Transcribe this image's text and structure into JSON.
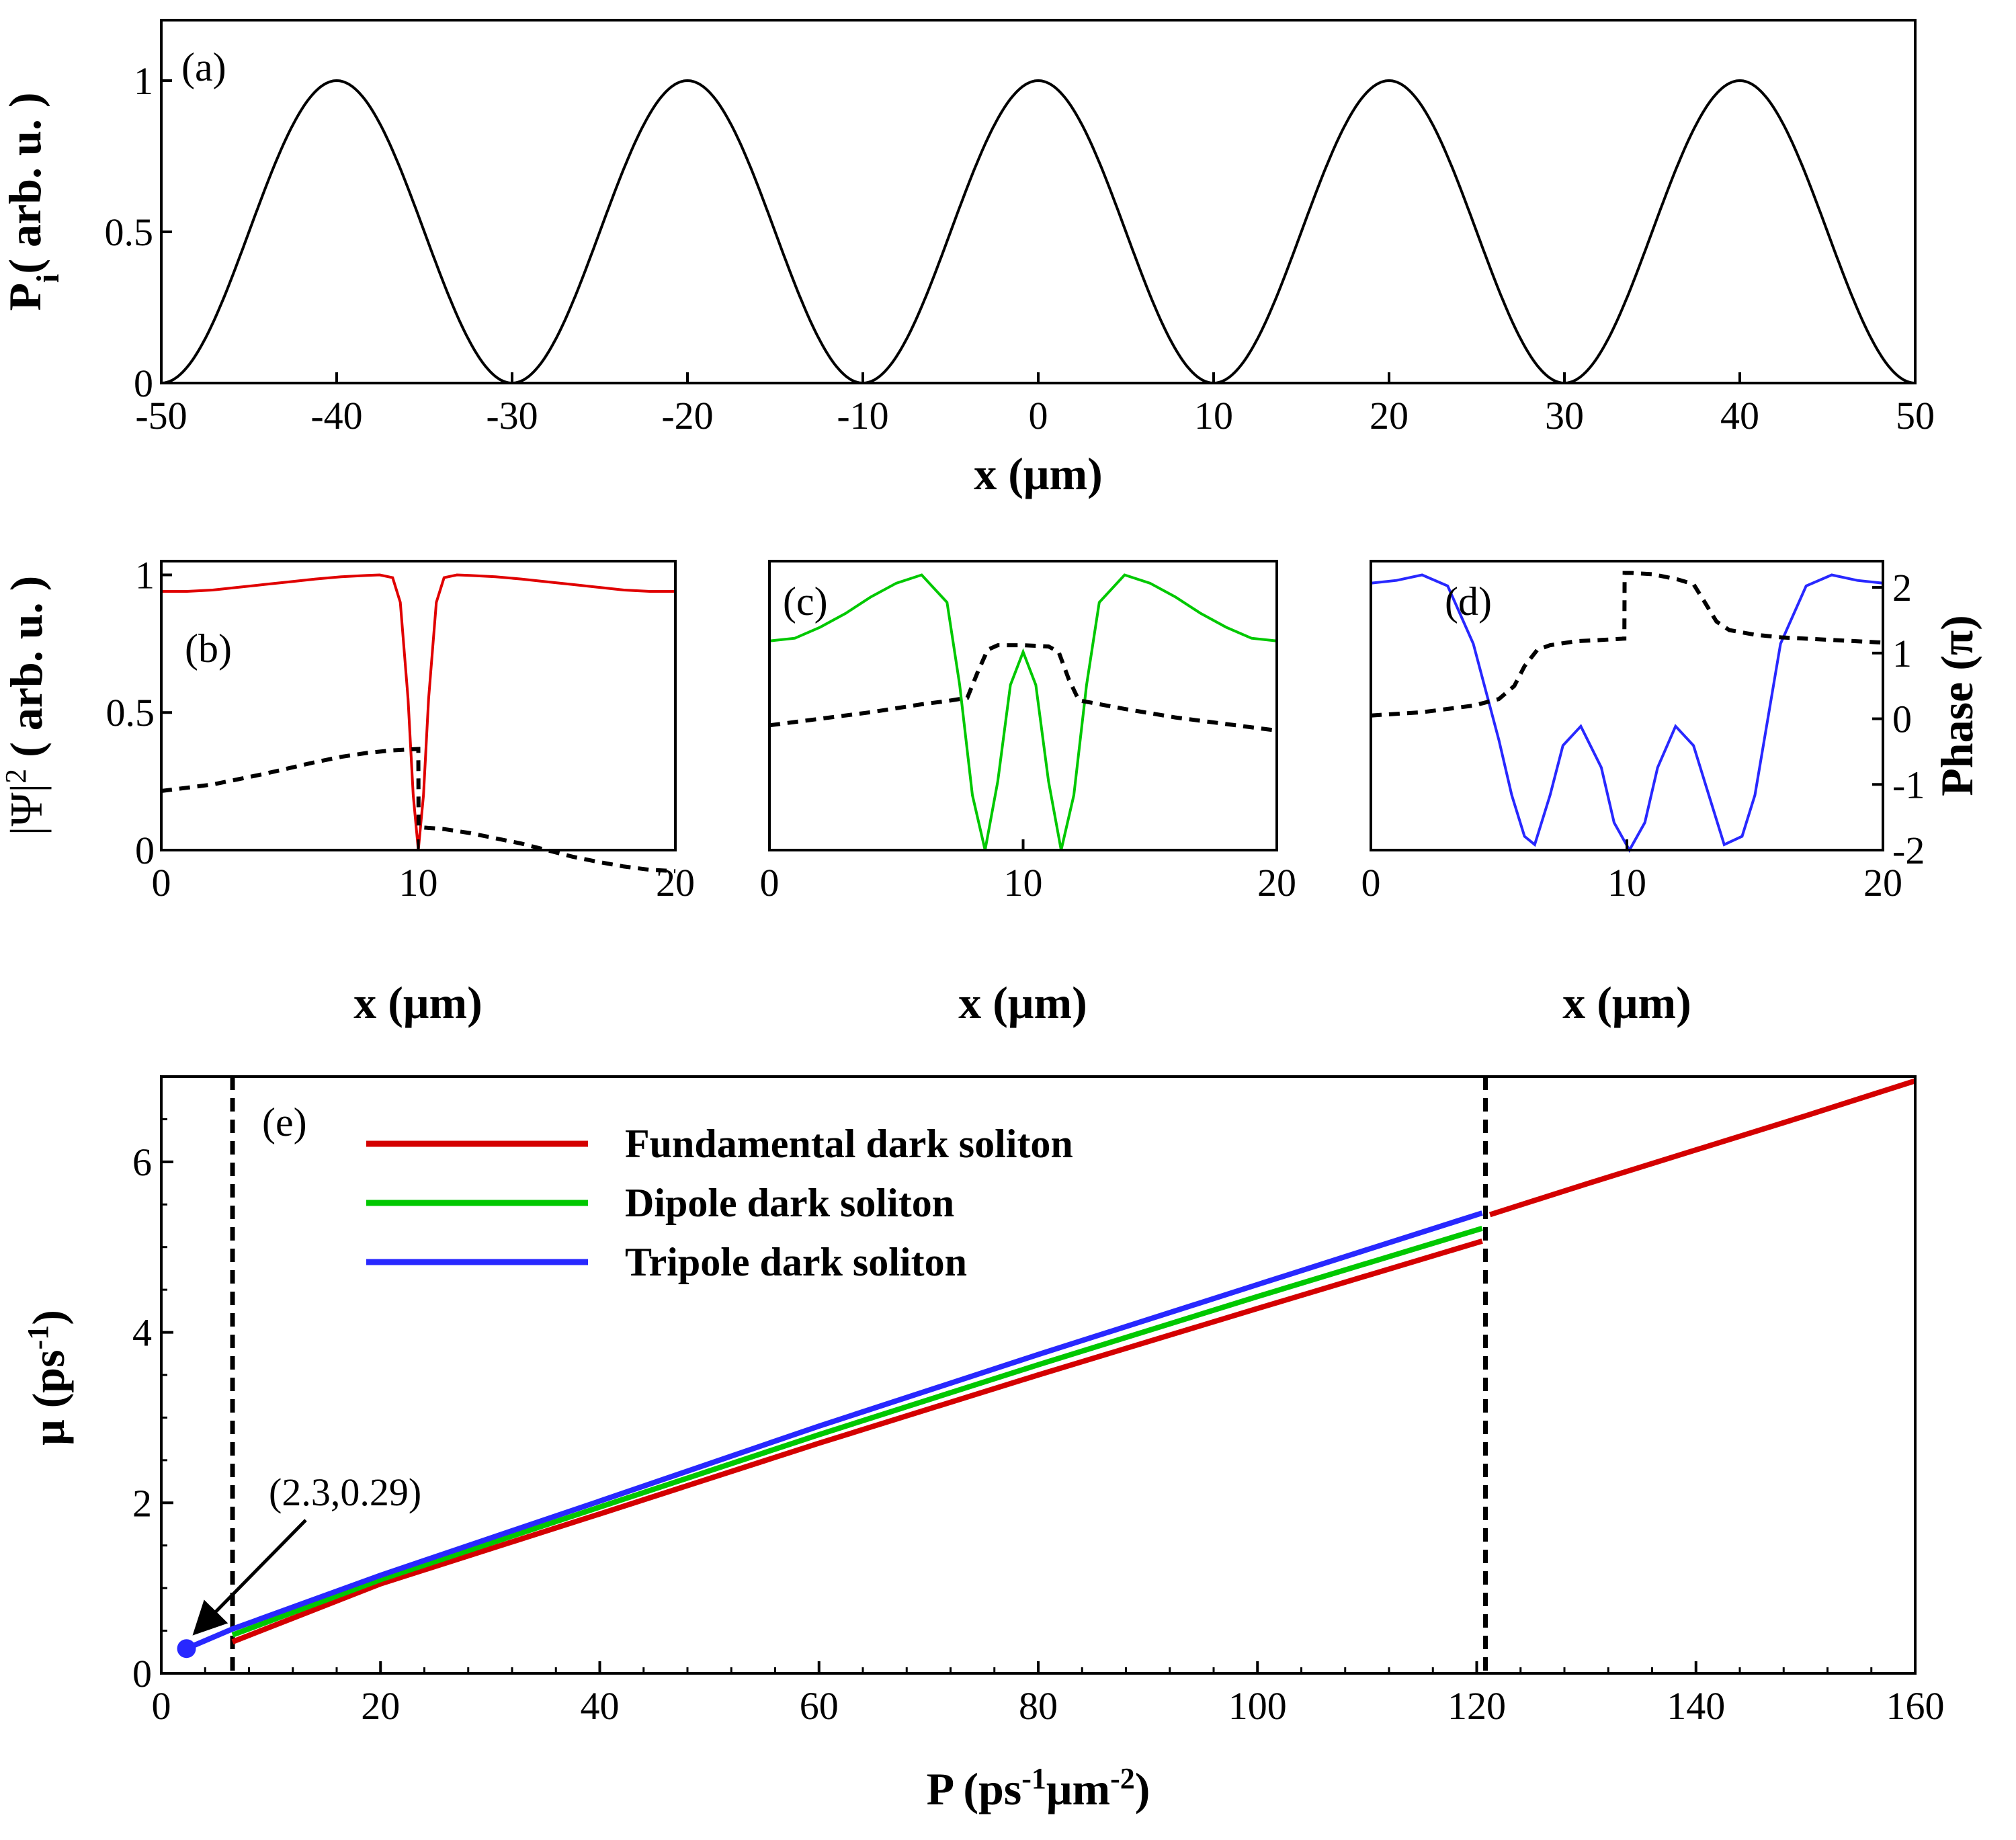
{
  "chart_data": [
    {
      "id": "a",
      "type": "line",
      "panel_label": "(a)",
      "xlabel": "x (μm)",
      "ylabel": {
        "main": "P",
        "sub": "i",
        "rest": "( arb. u. )"
      },
      "xlim": [
        -50,
        50
      ],
      "ylim": [
        0,
        1.2
      ],
      "xticks": [
        -50,
        -40,
        -30,
        -20,
        -10,
        0,
        10,
        20,
        30,
        40,
        50
      ],
      "yticks": [
        0,
        0.5,
        1
      ],
      "series": [
        {
          "name": "P_i",
          "color": "#000000",
          "function": "cos2(pi*x/20)",
          "period": 20,
          "peaks_at": [
            -40,
            -20,
            0,
            20,
            40
          ],
          "minima_at": [
            -50,
            -30,
            -10,
            10,
            30,
            50
          ]
        }
      ]
    },
    {
      "id": "b",
      "type": "line",
      "panel_label": "(b)",
      "xlabel": "x (μm)",
      "ylabel": {
        "main": "|Ψ|",
        "sup": "2",
        "rest": " ( arb. u. )"
      },
      "xlim": [
        0,
        20
      ],
      "ylim": [
        0,
        1.05
      ],
      "xticks": [
        0,
        10,
        20
      ],
      "yticks": [
        0,
        0.5,
        1
      ],
      "phase_ylim": [
        -2,
        2.4
      ],
      "series": [
        {
          "name": "|Ψ|² fundamental",
          "color": "#e00000",
          "x": [
            0,
            1,
            2,
            3,
            4,
            5,
            6,
            7,
            8,
            8.5,
            9,
            9.3,
            9.6,
            9.8,
            10,
            10.2,
            10.4,
            10.7,
            11,
            11.5,
            12,
            13,
            14,
            15,
            16,
            17,
            18,
            19,
            20
          ],
          "y": [
            0.94,
            0.94,
            0.945,
            0.955,
            0.965,
            0.975,
            0.985,
            0.993,
            0.998,
            1.0,
            0.99,
            0.9,
            0.55,
            0.2,
            0.0,
            0.2,
            0.55,
            0.9,
            0.99,
            1.0,
            0.998,
            0.993,
            0.985,
            0.975,
            0.965,
            0.955,
            0.945,
            0.94,
            0.94
          ]
        },
        {
          "name": "phase fundamental",
          "color": "#000000",
          "dashed": true,
          "axis": "phase",
          "x": [
            0,
            1,
            2,
            3,
            4,
            5,
            6,
            7,
            8,
            9,
            10,
            10.01,
            11,
            12,
            13,
            14,
            15,
            16,
            17,
            18,
            19,
            20
          ],
          "y": [
            -1.1,
            -1.05,
            -1.0,
            -0.92,
            -0.84,
            -0.75,
            -0.66,
            -0.58,
            -0.52,
            -0.48,
            -0.46,
            -1.65,
            -1.68,
            -1.74,
            -1.82,
            -1.9,
            -2.0,
            -2.1,
            -2.18,
            -2.25,
            -2.3,
            -2.32
          ]
        }
      ]
    },
    {
      "id": "c",
      "type": "line",
      "panel_label": "(c)",
      "xlabel": "x (μm)",
      "xlim": [
        0,
        20
      ],
      "ylim": [
        0,
        1.05
      ],
      "xticks": [
        0,
        10,
        20
      ],
      "phase_ylim": [
        -2,
        2.4
      ],
      "series": [
        {
          "name": "|Ψ|² dipole",
          "color": "#00c800",
          "x": [
            0,
            1,
            2,
            3,
            4,
            5,
            6,
            7,
            7.5,
            8,
            8.5,
            9,
            9.5,
            10,
            10.5,
            11,
            11.5,
            12,
            12.5,
            13,
            14,
            15,
            16,
            17,
            18,
            19,
            20
          ],
          "y": [
            0.76,
            0.77,
            0.81,
            0.86,
            0.92,
            0.97,
            1.0,
            0.9,
            0.6,
            0.2,
            0.0,
            0.25,
            0.6,
            0.72,
            0.6,
            0.25,
            0.0,
            0.2,
            0.6,
            0.9,
            1.0,
            0.97,
            0.92,
            0.86,
            0.81,
            0.77,
            0.76
          ]
        },
        {
          "name": "phase dipole",
          "color": "#000000",
          "dashed": true,
          "axis": "phase",
          "x": [
            0,
            2,
            4,
            6,
            7,
            7.8,
            8.2,
            8.6,
            9,
            10,
            11,
            11.4,
            11.8,
            12.2,
            14,
            16,
            18,
            20
          ],
          "y": [
            -0.1,
            0.0,
            0.1,
            0.22,
            0.27,
            0.32,
            0.7,
            1.05,
            1.12,
            1.12,
            1.1,
            1.02,
            0.6,
            0.28,
            0.15,
            0.02,
            -0.08,
            -0.18
          ]
        }
      ]
    },
    {
      "id": "d",
      "type": "line",
      "panel_label": "(d)",
      "xlabel": "x (μm)",
      "xlim": [
        0,
        20
      ],
      "ylim": [
        0,
        1.05
      ],
      "xticks": [
        0,
        10,
        20
      ],
      "phase_ylabel": "Phase (π)",
      "phase_ylim": [
        -2,
        2.4
      ],
      "phase_yticks": [
        -2,
        -1,
        0,
        1,
        2
      ],
      "series": [
        {
          "name": "|Ψ|² tripole",
          "color": "#2828ff",
          "x": [
            0,
            1,
            2,
            3,
            4,
            5,
            5.5,
            6,
            6.4,
            7,
            7.5,
            8.2,
            9,
            9.5,
            10.1,
            10.7,
            11.2,
            11.9,
            12.6,
            13.2,
            13.8,
            14.5,
            15,
            16,
            17,
            18,
            19,
            20
          ],
          "y": [
            0.97,
            0.98,
            1.0,
            0.96,
            0.75,
            0.4,
            0.2,
            0.05,
            0.02,
            0.2,
            0.38,
            0.45,
            0.3,
            0.1,
            0.0,
            0.1,
            0.3,
            0.45,
            0.38,
            0.2,
            0.02,
            0.05,
            0.2,
            0.75,
            0.96,
            1.0,
            0.98,
            0.97
          ]
        },
        {
          "name": "phase tripole",
          "color": "#000000",
          "dashed": true,
          "axis": "phase",
          "x": [
            0,
            2,
            4,
            5,
            5.6,
            6,
            6.5,
            7,
            8,
            9,
            9.9,
            9.91,
            10.2,
            11,
            12,
            12.6,
            13,
            13.5,
            14,
            15,
            16,
            18,
            20
          ],
          "y": [
            0.05,
            0.1,
            0.2,
            0.3,
            0.5,
            0.8,
            1.05,
            1.12,
            1.18,
            1.2,
            1.22,
            2.22,
            2.22,
            2.2,
            2.12,
            2.05,
            1.8,
            1.48,
            1.35,
            1.28,
            1.24,
            1.2,
            1.16
          ]
        }
      ]
    },
    {
      "id": "e",
      "type": "line",
      "panel_label": "(e)",
      "xlabel": "P (ps⁻¹μm⁻²)",
      "xlabel_parts": {
        "main": "P (ps",
        "sup1": "-1",
        "mid": "μm",
        "sup2": "-2",
        "end": ")"
      },
      "ylabel": {
        "main": "μ (ps",
        "sup": "-1",
        "rest": ")"
      },
      "xlim": [
        0,
        160
      ],
      "ylim": [
        0,
        7
      ],
      "xticks": [
        0,
        20,
        40,
        60,
        80,
        100,
        120,
        140,
        160
      ],
      "yticks": [
        0,
        2,
        4,
        6
      ],
      "vlines": [
        6.5,
        120.8
      ],
      "legend_position": "top-left",
      "series": [
        {
          "name": "Fundamental dark soliton",
          "color": "#d40000",
          "x": [
            6.5,
            20,
            40,
            60,
            80,
            100,
            120.5,
            121.2,
            130,
            140,
            150,
            160
          ],
          "y": [
            0.37,
            1.05,
            1.87,
            2.7,
            3.5,
            4.28,
            5.07,
            5.38,
            5.74,
            6.14,
            6.54,
            6.95
          ]
        },
        {
          "name": "Dipole dark soliton",
          "color": "#00c800",
          "x": [
            6.5,
            20,
            40,
            60,
            80,
            100,
            120.5
          ],
          "y": [
            0.45,
            1.1,
            1.95,
            2.8,
            3.62,
            4.42,
            5.22
          ]
        },
        {
          "name": "Tripole dark soliton",
          "color": "#2828ff",
          "x": [
            2.3,
            6.5,
            20,
            40,
            60,
            80,
            100,
            120.5
          ],
          "y": [
            0.29,
            0.52,
            1.15,
            2.02,
            2.9,
            3.74,
            4.56,
            5.4
          ]
        }
      ],
      "annotation": {
        "text": "(2.3,0.29)",
        "point": [
          2.3,
          0.29
        ]
      }
    }
  ]
}
